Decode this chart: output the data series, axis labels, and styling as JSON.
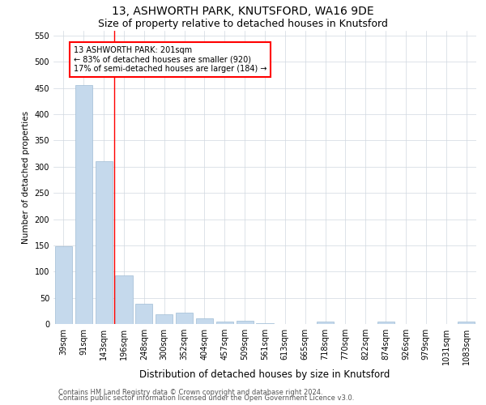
{
  "title1": "13, ASHWORTH PARK, KNUTSFORD, WA16 9DE",
  "title2": "Size of property relative to detached houses in Knutsford",
  "xlabel": "Distribution of detached houses by size in Knutsford",
  "ylabel": "Number of detached properties",
  "categories": [
    "39sqm",
    "91sqm",
    "143sqm",
    "196sqm",
    "248sqm",
    "300sqm",
    "352sqm",
    "404sqm",
    "457sqm",
    "509sqm",
    "561sqm",
    "613sqm",
    "665sqm",
    "718sqm",
    "770sqm",
    "822sqm",
    "874sqm",
    "926sqm",
    "979sqm",
    "1031sqm",
    "1083sqm"
  ],
  "values": [
    148,
    456,
    311,
    93,
    38,
    19,
    21,
    11,
    5,
    6,
    2,
    0,
    0,
    4,
    0,
    0,
    4,
    0,
    0,
    0,
    4
  ],
  "bar_color": "#c5d9ec",
  "bar_edge_color": "#a0bdd4",
  "grid_color": "#d0d8e0",
  "annotation_box_text": "13 ASHWORTH PARK: 201sqm\n← 83% of detached houses are smaller (920)\n17% of semi-detached houses are larger (184) →",
  "annotation_box_color": "white",
  "annotation_box_edge_color": "red",
  "annotation_line_color": "red",
  "footer1": "Contains HM Land Registry data © Crown copyright and database right 2024.",
  "footer2": "Contains public sector information licensed under the Open Government Licence v3.0.",
  "ylim": [
    0,
    560
  ],
  "yticks": [
    0,
    50,
    100,
    150,
    200,
    250,
    300,
    350,
    400,
    450,
    500,
    550
  ],
  "title1_fontsize": 10,
  "title2_fontsize": 9,
  "xlabel_fontsize": 8.5,
  "ylabel_fontsize": 7.5,
  "tick_fontsize": 7,
  "annot_fontsize": 7,
  "footer_fontsize": 6
}
